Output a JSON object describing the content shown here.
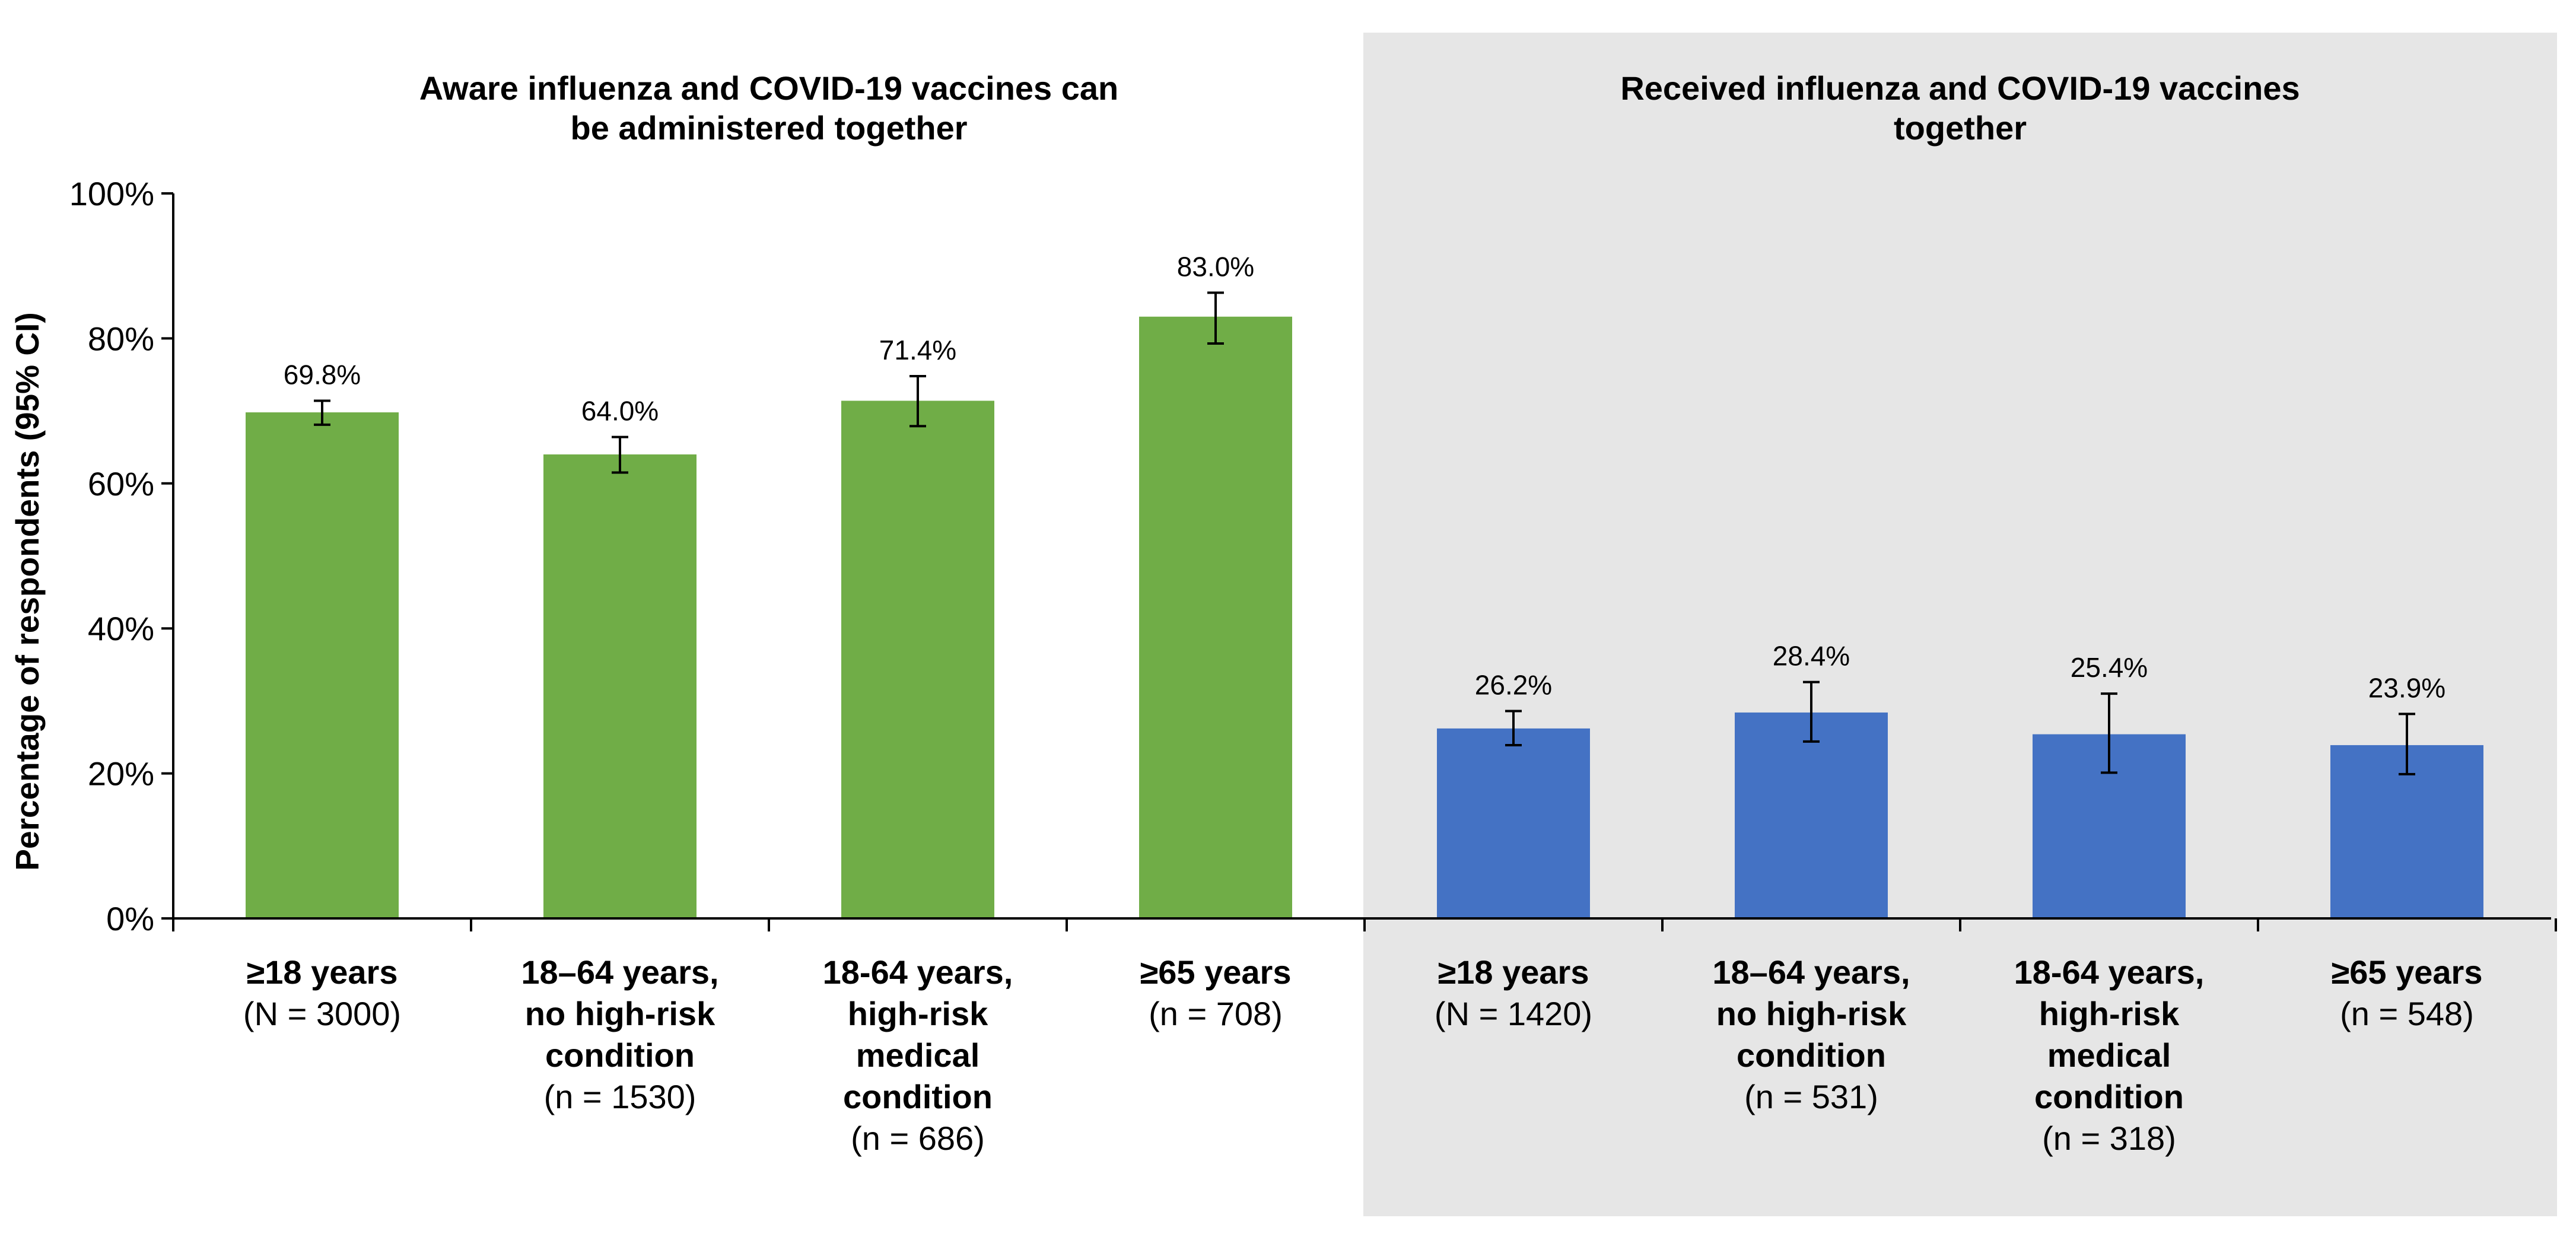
{
  "chart_data": {
    "type": "bar",
    "ylabel": "Percentage of respondents (95% CI)",
    "ylim": [
      0,
      100
    ],
    "y_ticks": [
      0,
      20,
      40,
      60,
      80,
      100
    ],
    "y_tick_labels": [
      "0%",
      "20%",
      "40%",
      "60%",
      "80%",
      "100%"
    ],
    "grid": false,
    "panels": [
      {
        "title_lines": [
          "Aware influenza and COVID-19 vaccines can",
          "be administered together"
        ],
        "color": "#70AD47",
        "shaded": false,
        "bars": [
          {
            "value": 69.8,
            "value_label": "69.8%",
            "ci": [
              68.1,
              71.4
            ],
            "label_lines": [
              "≥18 years",
              "(N = 3000)"
            ]
          },
          {
            "value": 64.0,
            "value_label": "64.0%",
            "ci": [
              61.5,
              66.4
            ],
            "label_lines": [
              "18–64 years,",
              "no high-risk",
              "condition",
              "(n = 1530)"
            ]
          },
          {
            "value": 71.4,
            "value_label": "71.4%",
            "ci": [
              67.9,
              74.8
            ],
            "label_lines": [
              "18-64 years,",
              "high-risk",
              "medical",
              "condition",
              "(n = 686)"
            ]
          },
          {
            "value": 83.0,
            "value_label": "83.0%",
            "ci": [
              79.3,
              86.3
            ],
            "label_lines": [
              "≥65 years",
              "(n = 708)"
            ]
          }
        ]
      },
      {
        "title_lines": [
          "Received influenza and COVID-19 vaccines",
          "together"
        ],
        "color": "#4472C4",
        "shaded": true,
        "bars": [
          {
            "value": 26.2,
            "value_label": "26.2%",
            "ci": [
              23.9,
              28.6
            ],
            "label_lines": [
              "≥18 years",
              "(N = 1420)"
            ]
          },
          {
            "value": 28.4,
            "value_label": "28.4%",
            "ci": [
              24.4,
              32.6
            ],
            "label_lines": [
              "18–64 years,",
              "no high-risk",
              "condition",
              "(n = 531)"
            ]
          },
          {
            "value": 25.4,
            "value_label": "25.4%",
            "ci": [
              20.1,
              31.0
            ],
            "label_lines": [
              "18-64 years,",
              "high-risk",
              "medical",
              "condition",
              "(n = 318)"
            ]
          },
          {
            "value": 23.9,
            "value_label": "23.9%",
            "ci": [
              19.9,
              28.2
            ],
            "label_lines": [
              "≥65 years",
              "(n = 548)"
            ]
          }
        ]
      }
    ]
  }
}
